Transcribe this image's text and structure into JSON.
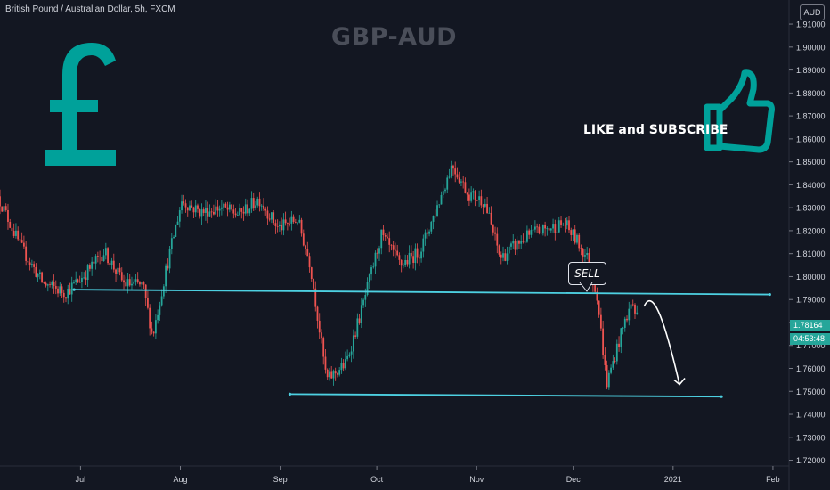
{
  "header": {
    "symbol_text": "British Pound / Australian Dollar, 5h, FXCM",
    "currency": "AUD"
  },
  "annotations": {
    "title": "GBP-AUD",
    "like_text": "LIKE and SUBSCRIBE",
    "sell_label": "SELL",
    "pound_icon": "pound-sign-icon",
    "thumb_icon": "thumbs-up-icon",
    "accent_color": "#00a19a"
  },
  "price_tags": {
    "last_price": "1.78164",
    "countdown": "04:53:48"
  },
  "chart_data": {
    "type": "candlestick",
    "x_tick_labels": [
      "Jul",
      "Aug",
      "Sep",
      "Oct",
      "Nov",
      "Dec",
      "2021",
      "Feb"
    ],
    "y_ticks": [
      1.72,
      1.73,
      1.74,
      1.75,
      1.76,
      1.77,
      1.78,
      1.79,
      1.8,
      1.81,
      1.82,
      1.83,
      1.84,
      1.85,
      1.86,
      1.87,
      1.88,
      1.89,
      1.9,
      1.91
    ],
    "y_range": [
      1.7175,
      1.9205
    ],
    "x_range_days": [
      -25,
      220
    ],
    "x_ticks_days": [
      0,
      31,
      62,
      92,
      123,
      153,
      184,
      215
    ],
    "up_color": "#26a69a",
    "down_color": "#ef5350",
    "price_path": [
      {
        "d": -25,
        "p": 1.835
      },
      {
        "d": -18,
        "p": 1.813
      },
      {
        "d": -11,
        "p": 1.797
      },
      {
        "d": -4,
        "p": 1.793
      },
      {
        "d": 2,
        "p": 1.801
      },
      {
        "d": 8,
        "p": 1.811
      },
      {
        "d": 14,
        "p": 1.797
      },
      {
        "d": 20,
        "p": 1.796
      },
      {
        "d": 23,
        "p": 1.774
      },
      {
        "d": 27,
        "p": 1.802
      },
      {
        "d": 32,
        "p": 1.833
      },
      {
        "d": 38,
        "p": 1.828
      },
      {
        "d": 44,
        "p": 1.83
      },
      {
        "d": 50,
        "p": 1.827
      },
      {
        "d": 56,
        "p": 1.834
      },
      {
        "d": 62,
        "p": 1.821
      },
      {
        "d": 68,
        "p": 1.825
      },
      {
        "d": 72,
        "p": 1.805
      },
      {
        "d": 77,
        "p": 1.755
      },
      {
        "d": 83,
        "p": 1.762
      },
      {
        "d": 88,
        "p": 1.786
      },
      {
        "d": 94,
        "p": 1.818
      },
      {
        "d": 100,
        "p": 1.805
      },
      {
        "d": 106,
        "p": 1.811
      },
      {
        "d": 111,
        "p": 1.829
      },
      {
        "d": 116,
        "p": 1.849
      },
      {
        "d": 121,
        "p": 1.836
      },
      {
        "d": 126,
        "p": 1.833
      },
      {
        "d": 131,
        "p": 1.808
      },
      {
        "d": 136,
        "p": 1.814
      },
      {
        "d": 141,
        "p": 1.819
      },
      {
        "d": 146,
        "p": 1.821
      },
      {
        "d": 151,
        "p": 1.823
      },
      {
        "d": 155,
        "p": 1.815
      },
      {
        "d": 158,
        "p": 1.808
      },
      {
        "d": 161,
        "p": 1.792
      },
      {
        "d": 164,
        "p": 1.753
      },
      {
        "d": 167,
        "p": 1.768
      },
      {
        "d": 170,
        "p": 1.782
      },
      {
        "d": 172,
        "p": 1.789
      },
      {
        "d": 173,
        "p": 1.783
      }
    ],
    "horizontal_lines": [
      {
        "from_day": -2,
        "to_day": 214,
        "from_price": 1.7943,
        "to_price": 1.7922
      },
      {
        "from_day": 65,
        "to_day": 199,
        "from_price": 1.7488,
        "to_price": 1.7477
      }
    ],
    "projection": [
      {
        "d": 175,
        "p": 1.787
      },
      {
        "d": 178,
        "p": 1.791
      },
      {
        "d": 182,
        "p": 1.777
      },
      {
        "d": 186,
        "p": 1.753
      }
    ]
  }
}
